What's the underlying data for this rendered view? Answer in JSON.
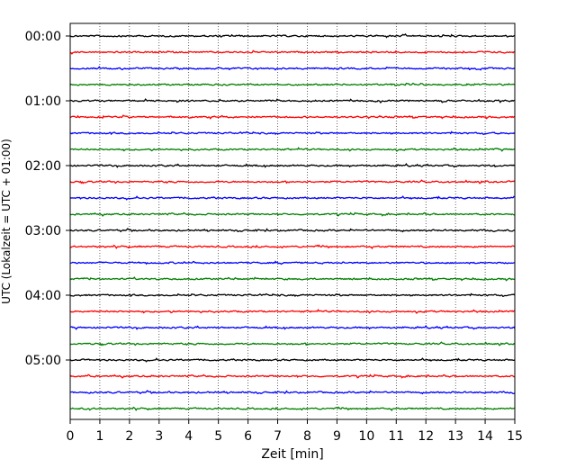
{
  "chart_data": {
    "type": "line",
    "title": "",
    "xlabel": "Zeit  [min]",
    "ylabel": "UTC (Lokalzeit = UTC + 01:00)",
    "xlim": [
      0,
      15
    ],
    "x_ticks": [
      "0",
      "1",
      "2",
      "3",
      "4",
      "5",
      "6",
      "7",
      "8",
      "9",
      "10",
      "11",
      "12",
      "13",
      "14",
      "15"
    ],
    "y_tick_labels": [
      "00:00",
      "01:00",
      "02:00",
      "03:00",
      "04:00",
      "05:00"
    ],
    "grid": "vertical dotted lines at each minute",
    "trace_colors": [
      "#000000",
      "#ff0000",
      "#0000ff",
      "#008000"
    ],
    "traces_per_hour": 4,
    "minutes_per_trace": 15,
    "trace_count": 24
  }
}
